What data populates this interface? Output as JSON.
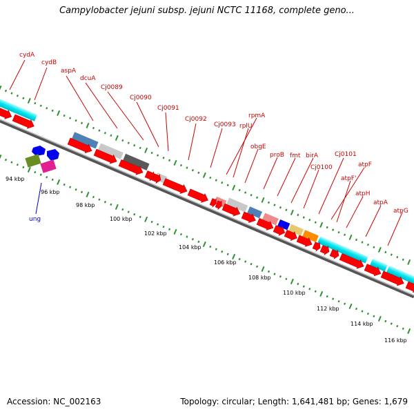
{
  "title": "Campylobacter jejuni subsp. jejuni NCTC 11168, complete geno...",
  "footer": {
    "accession": "Accession: NC_002163",
    "topology": "Topology: circular; Length: 1,641,481 bp; Genes: 1,679"
  },
  "colors": {
    "forward_gene": "#ff0000",
    "reverse_gene": "#0000ff",
    "label": "#cc0000",
    "ung_label": "#0000cc",
    "tick": "#2f8f2f",
    "backbone": "#888888",
    "steelblue": "#4f81b5",
    "lightgray": "#c8c8c8",
    "darkgray": "#5a5a5a",
    "pink": "#f08a8a",
    "olive": "#6b8e23",
    "magenta": "#e02090",
    "khaki": "#e6c86e",
    "orange": "#ff8c00",
    "cyan": "#00e5ee"
  },
  "scale_labels": [
    "94 kbp",
    "96 kbp",
    "98 kbp",
    "100 kbp",
    "102 kbp",
    "104 kbp",
    "106 kbp",
    "108 kbp",
    "110 kbp",
    "112 kbp",
    "114 kbp",
    "116 kbp"
  ],
  "gene_labels": [
    "cydA",
    "cydB",
    "aspA",
    "dcuA",
    "Cj0089",
    "Cj0090",
    "Cj0091",
    "Cj0092",
    "Cj0093",
    "rpmA",
    "rplU",
    "obgE",
    "proB",
    "fmt",
    "birA",
    "Cj0101",
    "Cj0100",
    "atpF",
    "atpF'",
    "atpH",
    "atpA",
    "atpG"
  ],
  "reverse_gene_label": "ung"
}
